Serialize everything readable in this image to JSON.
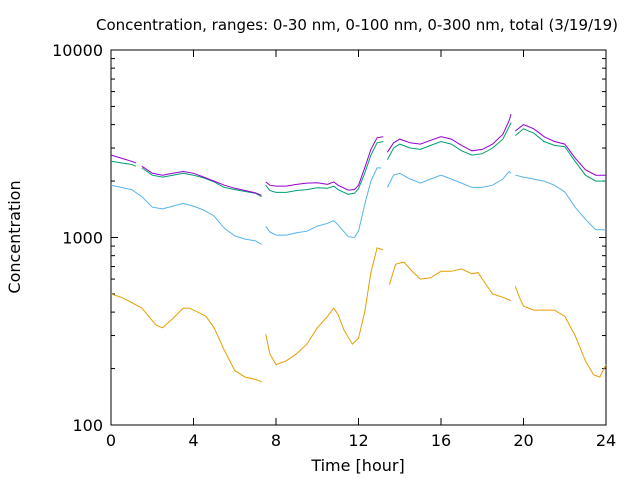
{
  "chart_data": {
    "type": "line",
    "title": "Concentration, ranges: 0-30 nm, 0-100 nm, 0-300 nm, total (3/19/19)",
    "xlabel": "Time [hour]",
    "ylabel": "Concentration",
    "xlim": [
      0,
      24
    ],
    "ylim": [
      100,
      10000
    ],
    "yscale": "log",
    "grid": false,
    "x_ticks": [
      0,
      4,
      8,
      12,
      16,
      20,
      24
    ],
    "x_tick_labels": [
      "0",
      "4",
      "8",
      "12",
      "16",
      "20",
      "24"
    ],
    "y_ticks": [
      100,
      1000,
      10000
    ],
    "y_tick_labels": [
      "100",
      "1000",
      "10000"
    ],
    "series": [
      {
        "color": "#e69f00",
        "segments": [
          [
            [
              0,
              500
            ],
            [
              0.5,
              480
            ],
            [
              1,
              450
            ],
            [
              1.5,
              420
            ],
            [
              2,
              360
            ],
            [
              2.2,
              340
            ],
            [
              2.5,
              330
            ],
            [
              3,
              370
            ],
            [
              3.5,
              420
            ],
            [
              3.8,
              420
            ],
            [
              4.2,
              400
            ],
            [
              4.6,
              380
            ],
            [
              5,
              330
            ],
            [
              5.5,
              250
            ],
            [
              6,
              195
            ],
            [
              6.5,
              180
            ],
            [
              7,
              175
            ],
            [
              7.3,
              170
            ]
          ],
          [
            [
              7.5,
              305
            ],
            [
              7.7,
              240
            ],
            [
              8,
              210
            ],
            [
              8.5,
              220
            ],
            [
              9,
              240
            ],
            [
              9.5,
              270
            ],
            [
              10,
              330
            ],
            [
              10.5,
              380
            ],
            [
              10.8,
              420
            ],
            [
              11,
              390
            ],
            [
              11.3,
              320
            ],
            [
              11.7,
              270
            ],
            [
              12,
              290
            ],
            [
              12.3,
              400
            ],
            [
              12.6,
              650
            ],
            [
              12.9,
              880
            ],
            [
              13.2,
              860
            ]
          ],
          [
            [
              13.5,
              560
            ],
            [
              13.8,
              720
            ],
            [
              14.2,
              740
            ],
            [
              14.6,
              660
            ],
            [
              15,
              600
            ],
            [
              15.5,
              610
            ],
            [
              16,
              660
            ],
            [
              16.5,
              660
            ],
            [
              17,
              680
            ],
            [
              17.5,
              640
            ],
            [
              17.8,
              650
            ],
            [
              18,
              600
            ],
            [
              18.5,
              500
            ],
            [
              19,
              480
            ],
            [
              19.4,
              460
            ]
          ],
          [
            [
              19.6,
              550
            ],
            [
              19.8,
              480
            ],
            [
              20,
              430
            ],
            [
              20.5,
              410
            ],
            [
              21.5,
              410
            ],
            [
              22,
              380
            ],
            [
              22.5,
              300
            ],
            [
              23,
              220
            ],
            [
              23.4,
              185
            ],
            [
              23.7,
              180
            ],
            [
              24,
              210
            ]
          ]
        ]
      },
      {
        "color": "#56b4e9",
        "segments": [
          [
            [
              0,
              1900
            ],
            [
              0.5,
              1850
            ],
            [
              1,
              1800
            ],
            [
              1.5,
              1650
            ],
            [
              2,
              1450
            ],
            [
              2.5,
              1420
            ],
            [
              3,
              1470
            ],
            [
              3.5,
              1520
            ],
            [
              4,
              1470
            ],
            [
              4.5,
              1400
            ],
            [
              5,
              1300
            ],
            [
              5.5,
              1120
            ],
            [
              6,
              1020
            ],
            [
              6.5,
              980
            ],
            [
              7,
              960
            ],
            [
              7.3,
              920
            ]
          ],
          [
            [
              7.5,
              1150
            ],
            [
              7.7,
              1070
            ],
            [
              8,
              1030
            ],
            [
              8.5,
              1030
            ],
            [
              9,
              1060
            ],
            [
              9.5,
              1080
            ],
            [
              10,
              1150
            ],
            [
              10.5,
              1190
            ],
            [
              10.8,
              1230
            ],
            [
              11,
              1170
            ],
            [
              11.5,
              1010
            ],
            [
              11.8,
              1000
            ],
            [
              12,
              1080
            ],
            [
              12.3,
              1500
            ],
            [
              12.6,
              2000
            ],
            [
              12.9,
              2350
            ],
            [
              13.1,
              2350
            ]
          ],
          [
            [
              13.4,
              1850
            ],
            [
              13.7,
              2150
            ],
            [
              14,
              2200
            ],
            [
              14.5,
              2050
            ],
            [
              15,
              1950
            ],
            [
              15.5,
              2050
            ],
            [
              16,
              2150
            ],
            [
              16.5,
              2050
            ],
            [
              17,
              1950
            ],
            [
              17.5,
              1850
            ],
            [
              18,
              1850
            ],
            [
              18.5,
              1900
            ],
            [
              19,
              2050
            ],
            [
              19.3,
              2250
            ],
            [
              19.4,
              2200
            ]
          ],
          [
            [
              19.6,
              2150
            ],
            [
              20,
              2100
            ],
            [
              21,
              2000
            ],
            [
              21.5,
              1900
            ],
            [
              22,
              1750
            ],
            [
              22.5,
              1450
            ],
            [
              23,
              1250
            ],
            [
              23.5,
              1100
            ],
            [
              24,
              1100
            ]
          ]
        ]
      },
      {
        "color": "#009e73",
        "segments": [
          [
            [
              0,
              2550
            ],
            [
              0.5,
              2500
            ],
            [
              1,
              2450
            ],
            [
              1.2,
              2400
            ]
          ],
          [
            [
              1.5,
              2350
            ],
            [
              2,
              2150
            ],
            [
              2.5,
              2100
            ],
            [
              3,
              2150
            ],
            [
              3.5,
              2200
            ],
            [
              4,
              2150
            ],
            [
              4.5,
              2080
            ],
            [
              5,
              1980
            ],
            [
              5.5,
              1850
            ],
            [
              6,
              1800
            ],
            [
              6.5,
              1760
            ],
            [
              7,
              1720
            ],
            [
              7.3,
              1650
            ]
          ],
          [
            [
              7.5,
              1900
            ],
            [
              7.7,
              1780
            ],
            [
              8,
              1740
            ],
            [
              8.5,
              1740
            ],
            [
              9,
              1780
            ],
            [
              9.5,
              1800
            ],
            [
              10,
              1840
            ],
            [
              10.5,
              1830
            ],
            [
              10.8,
              1880
            ],
            [
              11,
              1800
            ],
            [
              11.5,
              1700
            ],
            [
              11.8,
              1720
            ],
            [
              12,
              1820
            ],
            [
              12.3,
              2200
            ],
            [
              12.6,
              2750
            ],
            [
              12.9,
              3200
            ],
            [
              13.2,
              3250
            ]
          ],
          [
            [
              13.4,
              2600
            ],
            [
              13.7,
              3000
            ],
            [
              14,
              3150
            ],
            [
              14.5,
              3000
            ],
            [
              15,
              2950
            ],
            [
              15.5,
              3100
            ],
            [
              16,
              3250
            ],
            [
              16.5,
              3150
            ],
            [
              17,
              2900
            ],
            [
              17.5,
              2750
            ],
            [
              18,
              2800
            ],
            [
              18.5,
              3000
            ],
            [
              19,
              3350
            ],
            [
              19.3,
              3900
            ],
            [
              19.4,
              4100
            ]
          ],
          [
            [
              19.6,
              3500
            ],
            [
              20,
              3800
            ],
            [
              20.5,
              3600
            ],
            [
              21,
              3250
            ],
            [
              21.5,
              3100
            ],
            [
              22,
              3050
            ],
            [
              22.5,
              2550
            ],
            [
              23,
              2150
            ],
            [
              23.5,
              2000
            ],
            [
              24,
              2000
            ]
          ]
        ]
      },
      {
        "color": "#9400d3",
        "segments": [
          [
            [
              0,
              2750
            ],
            [
              0.5,
              2650
            ],
            [
              1,
              2550
            ],
            [
              1.2,
              2500
            ]
          ],
          [
            [
              1.5,
              2400
            ],
            [
              2,
              2200
            ],
            [
              2.5,
              2150
            ],
            [
              3,
              2200
            ],
            [
              3.5,
              2250
            ],
            [
              4,
              2200
            ],
            [
              4.5,
              2100
            ],
            [
              5,
              2000
            ],
            [
              5.5,
              1900
            ],
            [
              6,
              1830
            ],
            [
              6.5,
              1780
            ],
            [
              7,
              1730
            ],
            [
              7.3,
              1680
            ]
          ],
          [
            [
              7.5,
              1980
            ],
            [
              7.7,
              1900
            ],
            [
              8,
              1880
            ],
            [
              8.5,
              1880
            ],
            [
              9,
              1920
            ],
            [
              9.5,
              1950
            ],
            [
              10,
              1960
            ],
            [
              10.5,
              1920
            ],
            [
              10.8,
              1980
            ],
            [
              11,
              1900
            ],
            [
              11.5,
              1790
            ],
            [
              11.8,
              1800
            ],
            [
              12,
              1900
            ],
            [
              12.3,
              2350
            ],
            [
              12.6,
              2950
            ],
            [
              12.9,
              3400
            ],
            [
              13.2,
              3450
            ]
          ],
          [
            [
              13.4,
              2850
            ],
            [
              13.7,
              3200
            ],
            [
              14,
              3350
            ],
            [
              14.5,
              3200
            ],
            [
              15,
              3150
            ],
            [
              15.5,
              3300
            ],
            [
              16,
              3450
            ],
            [
              16.5,
              3350
            ],
            [
              17,
              3100
            ],
            [
              17.5,
              2900
            ],
            [
              18,
              2950
            ],
            [
              18.5,
              3150
            ],
            [
              19,
              3550
            ],
            [
              19.3,
              4200
            ],
            [
              19.4,
              4550
            ]
          ],
          [
            [
              19.6,
              3700
            ],
            [
              20,
              4000
            ],
            [
              20.5,
              3800
            ],
            [
              21,
              3450
            ],
            [
              21.5,
              3250
            ],
            [
              22,
              3150
            ],
            [
              22.5,
              2650
            ],
            [
              23,
              2300
            ],
            [
              23.5,
              2150
            ],
            [
              24,
              2150
            ]
          ]
        ]
      }
    ]
  }
}
